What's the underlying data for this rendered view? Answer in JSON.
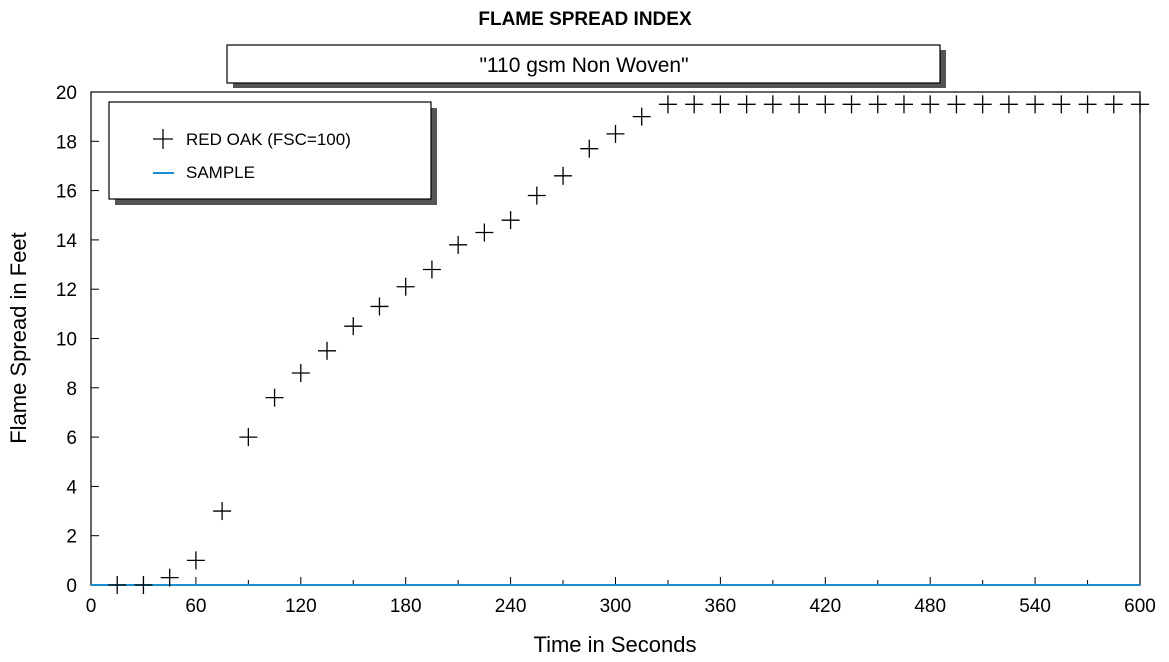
{
  "chart_data": {
    "type": "scatter",
    "title": "FLAME SPREAD INDEX",
    "subtitle": "\"110 gsm Non Woven\"",
    "xlabel": "Time in Seconds",
    "ylabel": "Flame Spread in Feet",
    "xlim": [
      0,
      600
    ],
    "ylim": [
      0,
      20
    ],
    "xticks": [
      0,
      60,
      120,
      180,
      240,
      300,
      360,
      420,
      480,
      540,
      600
    ],
    "yticks": [
      0,
      2,
      4,
      6,
      8,
      10,
      12,
      14,
      16,
      18,
      20
    ],
    "grid": false,
    "legend_position": "top-left",
    "series": [
      {
        "name": "RED OAK (FSC=100)",
        "marker": "plus",
        "color": "#000000",
        "x": [
          15,
          30,
          45,
          60,
          75,
          90,
          105,
          120,
          135,
          150,
          165,
          180,
          195,
          210,
          225,
          240,
          255,
          270,
          285,
          300,
          315,
          330,
          345,
          360,
          375,
          390,
          405,
          420,
          435,
          450,
          465,
          480,
          495,
          510,
          525,
          540,
          555,
          570,
          585,
          600
        ],
        "y": [
          0,
          0,
          0.3,
          1.0,
          3.0,
          6.0,
          7.6,
          8.6,
          9.5,
          10.5,
          11.3,
          12.1,
          12.8,
          13.8,
          14.3,
          14.8,
          15.8,
          16.6,
          17.7,
          18.3,
          19.0,
          19.5,
          19.5,
          19.5,
          19.5,
          19.5,
          19.5,
          19.5,
          19.5,
          19.5,
          19.5,
          19.5,
          19.5,
          19.5,
          19.5,
          19.5,
          19.5,
          19.5,
          19.5,
          19.5
        ]
      },
      {
        "name": "SAMPLE",
        "marker": "line",
        "color": "#1a8fd0",
        "x": [
          0,
          600
        ],
        "y": [
          0,
          0
        ]
      }
    ]
  }
}
